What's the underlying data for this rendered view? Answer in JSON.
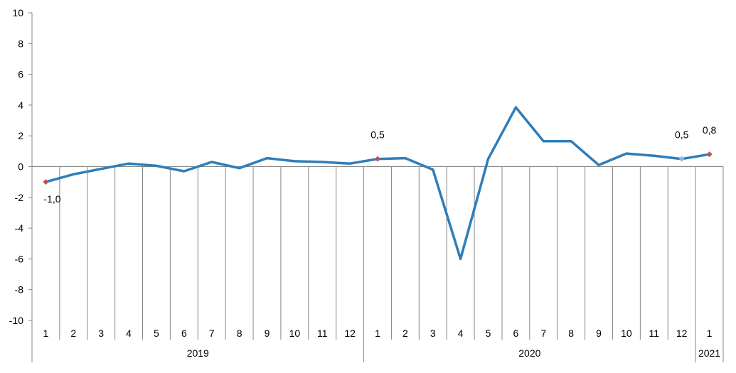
{
  "chart_data": {
    "type": "line",
    "title": "",
    "xlabel": "",
    "ylabel": "",
    "ylim": [
      -10,
      10
    ],
    "yticks": [
      10,
      8,
      6,
      4,
      2,
      0,
      -2,
      -4,
      -6,
      -8,
      -10
    ],
    "ytick_labels": [
      "10",
      "8",
      "6",
      "4",
      "2",
      "0",
      "-2",
      "-4",
      "-6",
      "-8",
      "-10"
    ],
    "categories": [
      "1",
      "2",
      "3",
      "4",
      "5",
      "6",
      "7",
      "8",
      "9",
      "10",
      "11",
      "12",
      "1",
      "2",
      "3",
      "4",
      "5",
      "6",
      "7",
      "8",
      "9",
      "10",
      "11",
      "12",
      "1"
    ],
    "year_groups": [
      {
        "label": "2019",
        "count": 12
      },
      {
        "label": "2020",
        "count": 12
      },
      {
        "label": "2021",
        "count": 1
      }
    ],
    "series": [
      {
        "values": [
          -1.0,
          -0.5,
          -0.15,
          0.2,
          0.05,
          -0.3,
          0.3,
          -0.1,
          0.55,
          0.35,
          0.3,
          0.2,
          0.5,
          0.55,
          -0.2,
          -6.0,
          0.5,
          3.85,
          1.65,
          1.65,
          0.1,
          0.85,
          0.7,
          0.5,
          0.8
        ],
        "color": "#2f7db8"
      }
    ],
    "markers": [
      {
        "index": 0,
        "label": "-1,0",
        "color": "#c0504d"
      },
      {
        "index": 12,
        "label": "0,5",
        "color": "#c0504d"
      },
      {
        "index": 23,
        "label": "0,5",
        "color": "#8eb4e3"
      },
      {
        "index": 24,
        "label": "0,8",
        "color": "#c0504d"
      }
    ],
    "grid": false,
    "legend": "none"
  }
}
